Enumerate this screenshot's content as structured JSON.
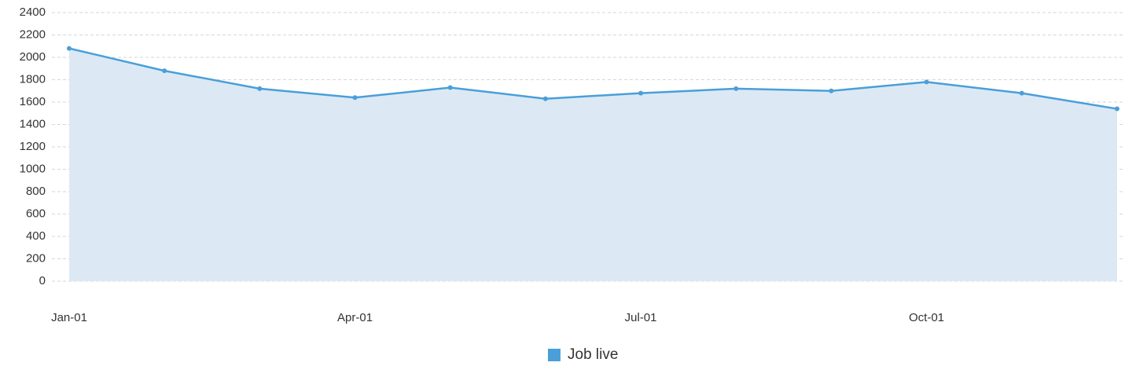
{
  "chart_data": {
    "type": "area",
    "categories": [
      "Jan-01",
      null,
      null,
      "Apr-01",
      null,
      null,
      "Jul-01",
      null,
      null,
      "Oct-01",
      null,
      null
    ],
    "series": [
      {
        "name": "Job live",
        "color": "#4a9fd8",
        "fill": "#dce9f5",
        "values": [
          2080,
          1880,
          1720,
          1640,
          1730,
          1630,
          1680,
          1720,
          1700,
          1780,
          1680,
          1540
        ]
      }
    ],
    "ylim": [
      0,
      2400
    ],
    "yticks": [
      0,
      200,
      400,
      600,
      800,
      1000,
      1200,
      1400,
      1600,
      1800,
      2000,
      2200,
      2400
    ],
    "grid": true,
    "legend": "bottom"
  }
}
